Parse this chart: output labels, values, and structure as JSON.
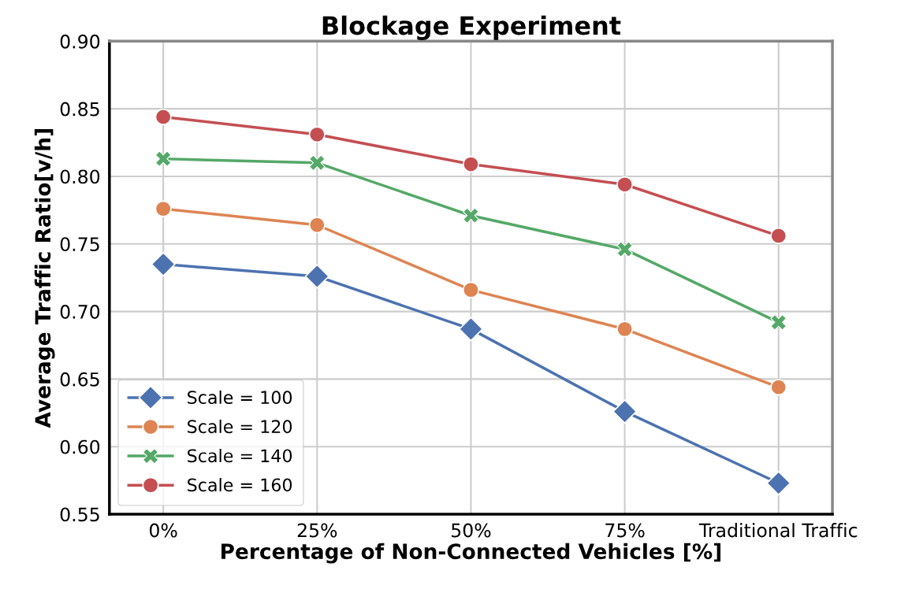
{
  "chart_data": {
    "type": "line",
    "title": "Blockage Experiment",
    "xlabel": "Percentage of Non-Connected Vehicles [%]",
    "ylabel": "Average Traffic Ratio[v/h]",
    "categories": [
      "0%",
      "25%",
      "50%",
      "75%",
      "Traditional Traffic"
    ],
    "ylim": [
      0.55,
      0.9
    ],
    "yticks": [
      0.55,
      {
        "value": 0.6,
        "label": "0.60"
      },
      0.65,
      {
        "value": 0.7,
        "label": "0.70"
      },
      0.75,
      {
        "value": 0.8,
        "label": "0.80"
      },
      0.85,
      {
        "value": 0.9,
        "label": "0.90"
      }
    ],
    "grid": true,
    "legend": "bottom left",
    "line_style": "solid",
    "series": [
      {
        "name": "Scale = 100",
        "color": "#4c72b0",
        "marker": "diamond",
        "values": [
          0.735,
          0.726,
          0.687,
          0.626,
          0.573
        ]
      },
      {
        "name": "Scale = 120",
        "color": "#dd8452",
        "marker": "circle",
        "values": [
          0.776,
          0.764,
          0.716,
          0.687,
          0.644
        ]
      },
      {
        "name": "Scale = 140",
        "color": "#55a868",
        "marker": "cross",
        "values": [
          0.813,
          0.81,
          0.771,
          0.746,
          0.692
        ]
      },
      {
        "name": "Scale = 160",
        "color": "#c44e52",
        "marker": "circle",
        "values": [
          0.844,
          0.831,
          0.809,
          0.794,
          0.756
        ]
      }
    ]
  }
}
